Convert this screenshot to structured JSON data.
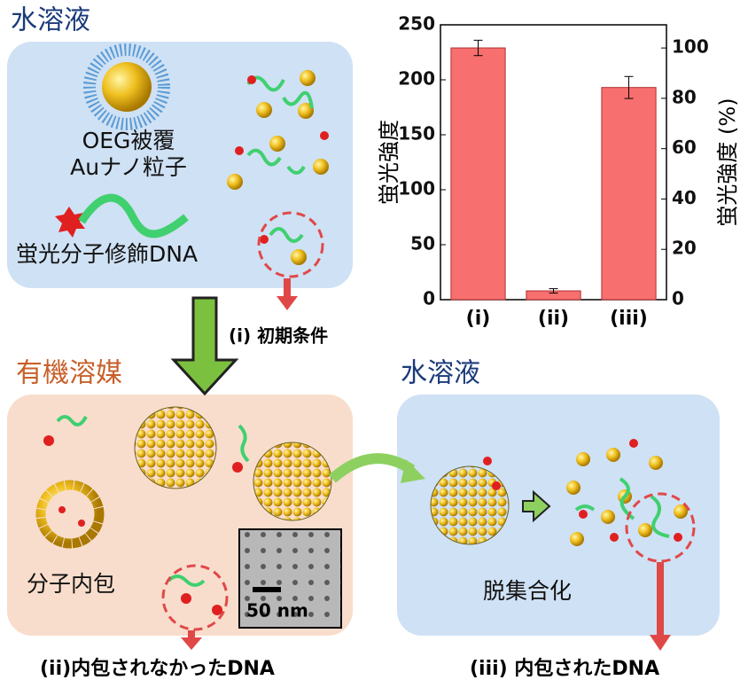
{
  "labels": {
    "top_solvent": "水溶液",
    "oeg1": "OEG被覆",
    "oeg2": "Auナノ粒子",
    "dna": "蛍光分子修飾DNA",
    "step_i": "(i) 初期条件",
    "organic": "有機溶媒",
    "encaps": "分子内包",
    "scale": "50 nm",
    "step_ii": "(ii)内包されなかったDNA",
    "right_solvent": "水溶液",
    "disassembly": "脱集合化",
    "step_iii": "(iii) 内包されたDNA"
  },
  "chart_data": {
    "type": "bar",
    "categories": [
      "(i)",
      "(ii)",
      "(iii)"
    ],
    "values": [
      229,
      8,
      193
    ],
    "errors": [
      7,
      2,
      10
    ],
    "color": "#f76f6f",
    "ylabel": "蛍光強度",
    "y2label": "蛍光強度 (%)",
    "ylim": [
      0,
      250
    ],
    "yticks": [
      0,
      50,
      100,
      150,
      200,
      250
    ],
    "y2lim": [
      0,
      109.2
    ],
    "y2ticks": [
      0,
      20,
      40,
      60,
      80,
      100
    ]
  }
}
